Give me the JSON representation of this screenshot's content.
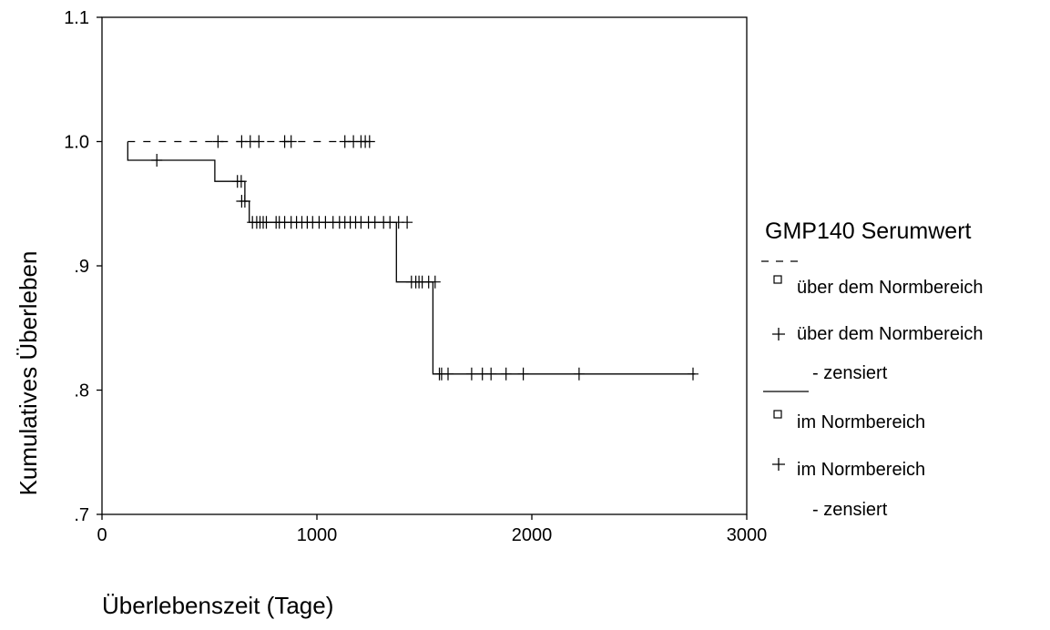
{
  "chart_data": {
    "type": "line",
    "subtype": "kaplan-meier step plot",
    "xlabel": "Überlebenszeit  (Tage)",
    "ylabel": "Kumulatives Überleben",
    "xlim": [
      0,
      3000
    ],
    "ylim": [
      0.7,
      1.1
    ],
    "x_ticks": [
      0,
      1000,
      2000,
      3000
    ],
    "x_tick_labels": [
      "0",
      "1000",
      "2000",
      "3000"
    ],
    "y_ticks": [
      0.7,
      0.8,
      0.9,
      1.0,
      1.1
    ],
    "y_tick_labels": [
      ".7",
      ".8",
      ".9",
      "1.0",
      "1.1"
    ],
    "grid": false,
    "legend": {
      "title": "GMP140  Serumwert",
      "position": "right",
      "entries": [
        {
          "line": "dashed",
          "symbol": "square",
          "label": "über dem Normbereich"
        },
        {
          "symbol": "plus",
          "label": "über dem Normbereich",
          "label2": "- zensiert"
        },
        {
          "line": "solid",
          "symbol": "square",
          "label": "im Normbereich"
        },
        {
          "symbol": "plus",
          "label": "im Normbereich",
          "label2": "- zensiert"
        }
      ]
    },
    "series": [
      {
        "name": "über dem Normbereich",
        "line_style": "dashed",
        "color": "#000000",
        "steps": [
          [
            120,
            1.0
          ],
          [
            1250,
            1.0
          ]
        ],
        "censored": [
          [
            540,
            1.0
          ],
          [
            650,
            1.0
          ],
          [
            690,
            1.0
          ],
          [
            730,
            1.0
          ],
          [
            850,
            1.0
          ],
          [
            880,
            1.0
          ],
          [
            1130,
            1.0
          ],
          [
            1170,
            1.0
          ],
          [
            1205,
            1.0
          ],
          [
            1225,
            1.0
          ],
          [
            1245,
            1.0
          ]
        ]
      },
      {
        "name": "im Normbereich",
        "line_style": "solid",
        "color": "#000000",
        "steps": [
          [
            120,
            1.0
          ],
          [
            120,
            0.985
          ],
          [
            525,
            0.985
          ],
          [
            525,
            0.968
          ],
          [
            665,
            0.968
          ],
          [
            665,
            0.952
          ],
          [
            685,
            0.952
          ],
          [
            685,
            0.935
          ],
          [
            1370,
            0.935
          ],
          [
            1370,
            0.887
          ],
          [
            1540,
            0.887
          ],
          [
            1540,
            0.813
          ],
          [
            2760,
            0.813
          ]
        ],
        "censored": [
          [
            255,
            0.985
          ],
          [
            630,
            0.968
          ],
          [
            648,
            0.968
          ],
          [
            650,
            0.952
          ],
          [
            665,
            0.952
          ],
          [
            700,
            0.935
          ],
          [
            720,
            0.935
          ],
          [
            735,
            0.935
          ],
          [
            750,
            0.935
          ],
          [
            765,
            0.935
          ],
          [
            810,
            0.935
          ],
          [
            825,
            0.935
          ],
          [
            850,
            0.935
          ],
          [
            880,
            0.935
          ],
          [
            905,
            0.935
          ],
          [
            930,
            0.935
          ],
          [
            955,
            0.935
          ],
          [
            980,
            0.935
          ],
          [
            1010,
            0.935
          ],
          [
            1040,
            0.935
          ],
          [
            1075,
            0.935
          ],
          [
            1105,
            0.935
          ],
          [
            1130,
            0.935
          ],
          [
            1155,
            0.935
          ],
          [
            1180,
            0.935
          ],
          [
            1205,
            0.935
          ],
          [
            1240,
            0.935
          ],
          [
            1270,
            0.935
          ],
          [
            1310,
            0.935
          ],
          [
            1340,
            0.935
          ],
          [
            1380,
            0.935
          ],
          [
            1420,
            0.935
          ],
          [
            1440,
            0.887
          ],
          [
            1460,
            0.887
          ],
          [
            1475,
            0.887
          ],
          [
            1490,
            0.887
          ],
          [
            1520,
            0.887
          ],
          [
            1550,
            0.887
          ],
          [
            1570,
            0.813
          ],
          [
            1580,
            0.813
          ],
          [
            1610,
            0.813
          ],
          [
            1720,
            0.813
          ],
          [
            1770,
            0.813
          ],
          [
            1810,
            0.813
          ],
          [
            1880,
            0.813
          ],
          [
            1960,
            0.813
          ],
          [
            2220,
            0.813
          ],
          [
            2750,
            0.813
          ]
        ]
      }
    ]
  }
}
